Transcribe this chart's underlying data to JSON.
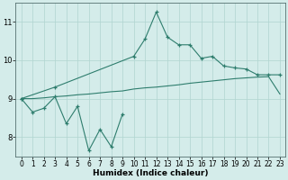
{
  "title": "",
  "xlabel": "Humidex (Indice chaleur)",
  "x_values": [
    0,
    1,
    2,
    3,
    4,
    5,
    6,
    7,
    8,
    9,
    10,
    11,
    12,
    13,
    14,
    15,
    16,
    17,
    18,
    19,
    20,
    21,
    22,
    23
  ],
  "line1_y": [
    9.0,
    8.65,
    8.75,
    9.05,
    8.35,
    8.8,
    7.65,
    8.2,
    7.75,
    8.6,
    null,
    null,
    null,
    null,
    null,
    null,
    null,
    null,
    null,
    null,
    null,
    null,
    null,
    null
  ],
  "line2_y": [
    9.0,
    null,
    null,
    9.3,
    null,
    null,
    null,
    null,
    null,
    null,
    10.1,
    10.55,
    11.25,
    10.6,
    10.4,
    10.4,
    10.05,
    10.1,
    9.85,
    9.8,
    9.77,
    9.62,
    9.62,
    9.62
  ],
  "line3_y": [
    9.0,
    9.0,
    9.02,
    9.05,
    9.07,
    9.1,
    9.12,
    9.15,
    9.18,
    9.2,
    9.25,
    9.28,
    9.3,
    9.33,
    9.36,
    9.4,
    9.43,
    9.46,
    9.49,
    9.52,
    9.54,
    9.56,
    9.57,
    9.12
  ],
  "line_color": "#2e7d6d",
  "bg_color": "#d4ecea",
  "grid_color": "#b0d4d0",
  "ylim": [
    7.5,
    11.5
  ],
  "xlim": [
    -0.5,
    23.5
  ],
  "yticks": [
    8,
    9,
    10,
    11
  ],
  "xticks": [
    0,
    1,
    2,
    3,
    4,
    5,
    6,
    7,
    8,
    9,
    10,
    11,
    12,
    13,
    14,
    15,
    16,
    17,
    18,
    19,
    20,
    21,
    22,
    23
  ],
  "tick_fontsize": 5.5,
  "xlabel_fontsize": 6.5
}
